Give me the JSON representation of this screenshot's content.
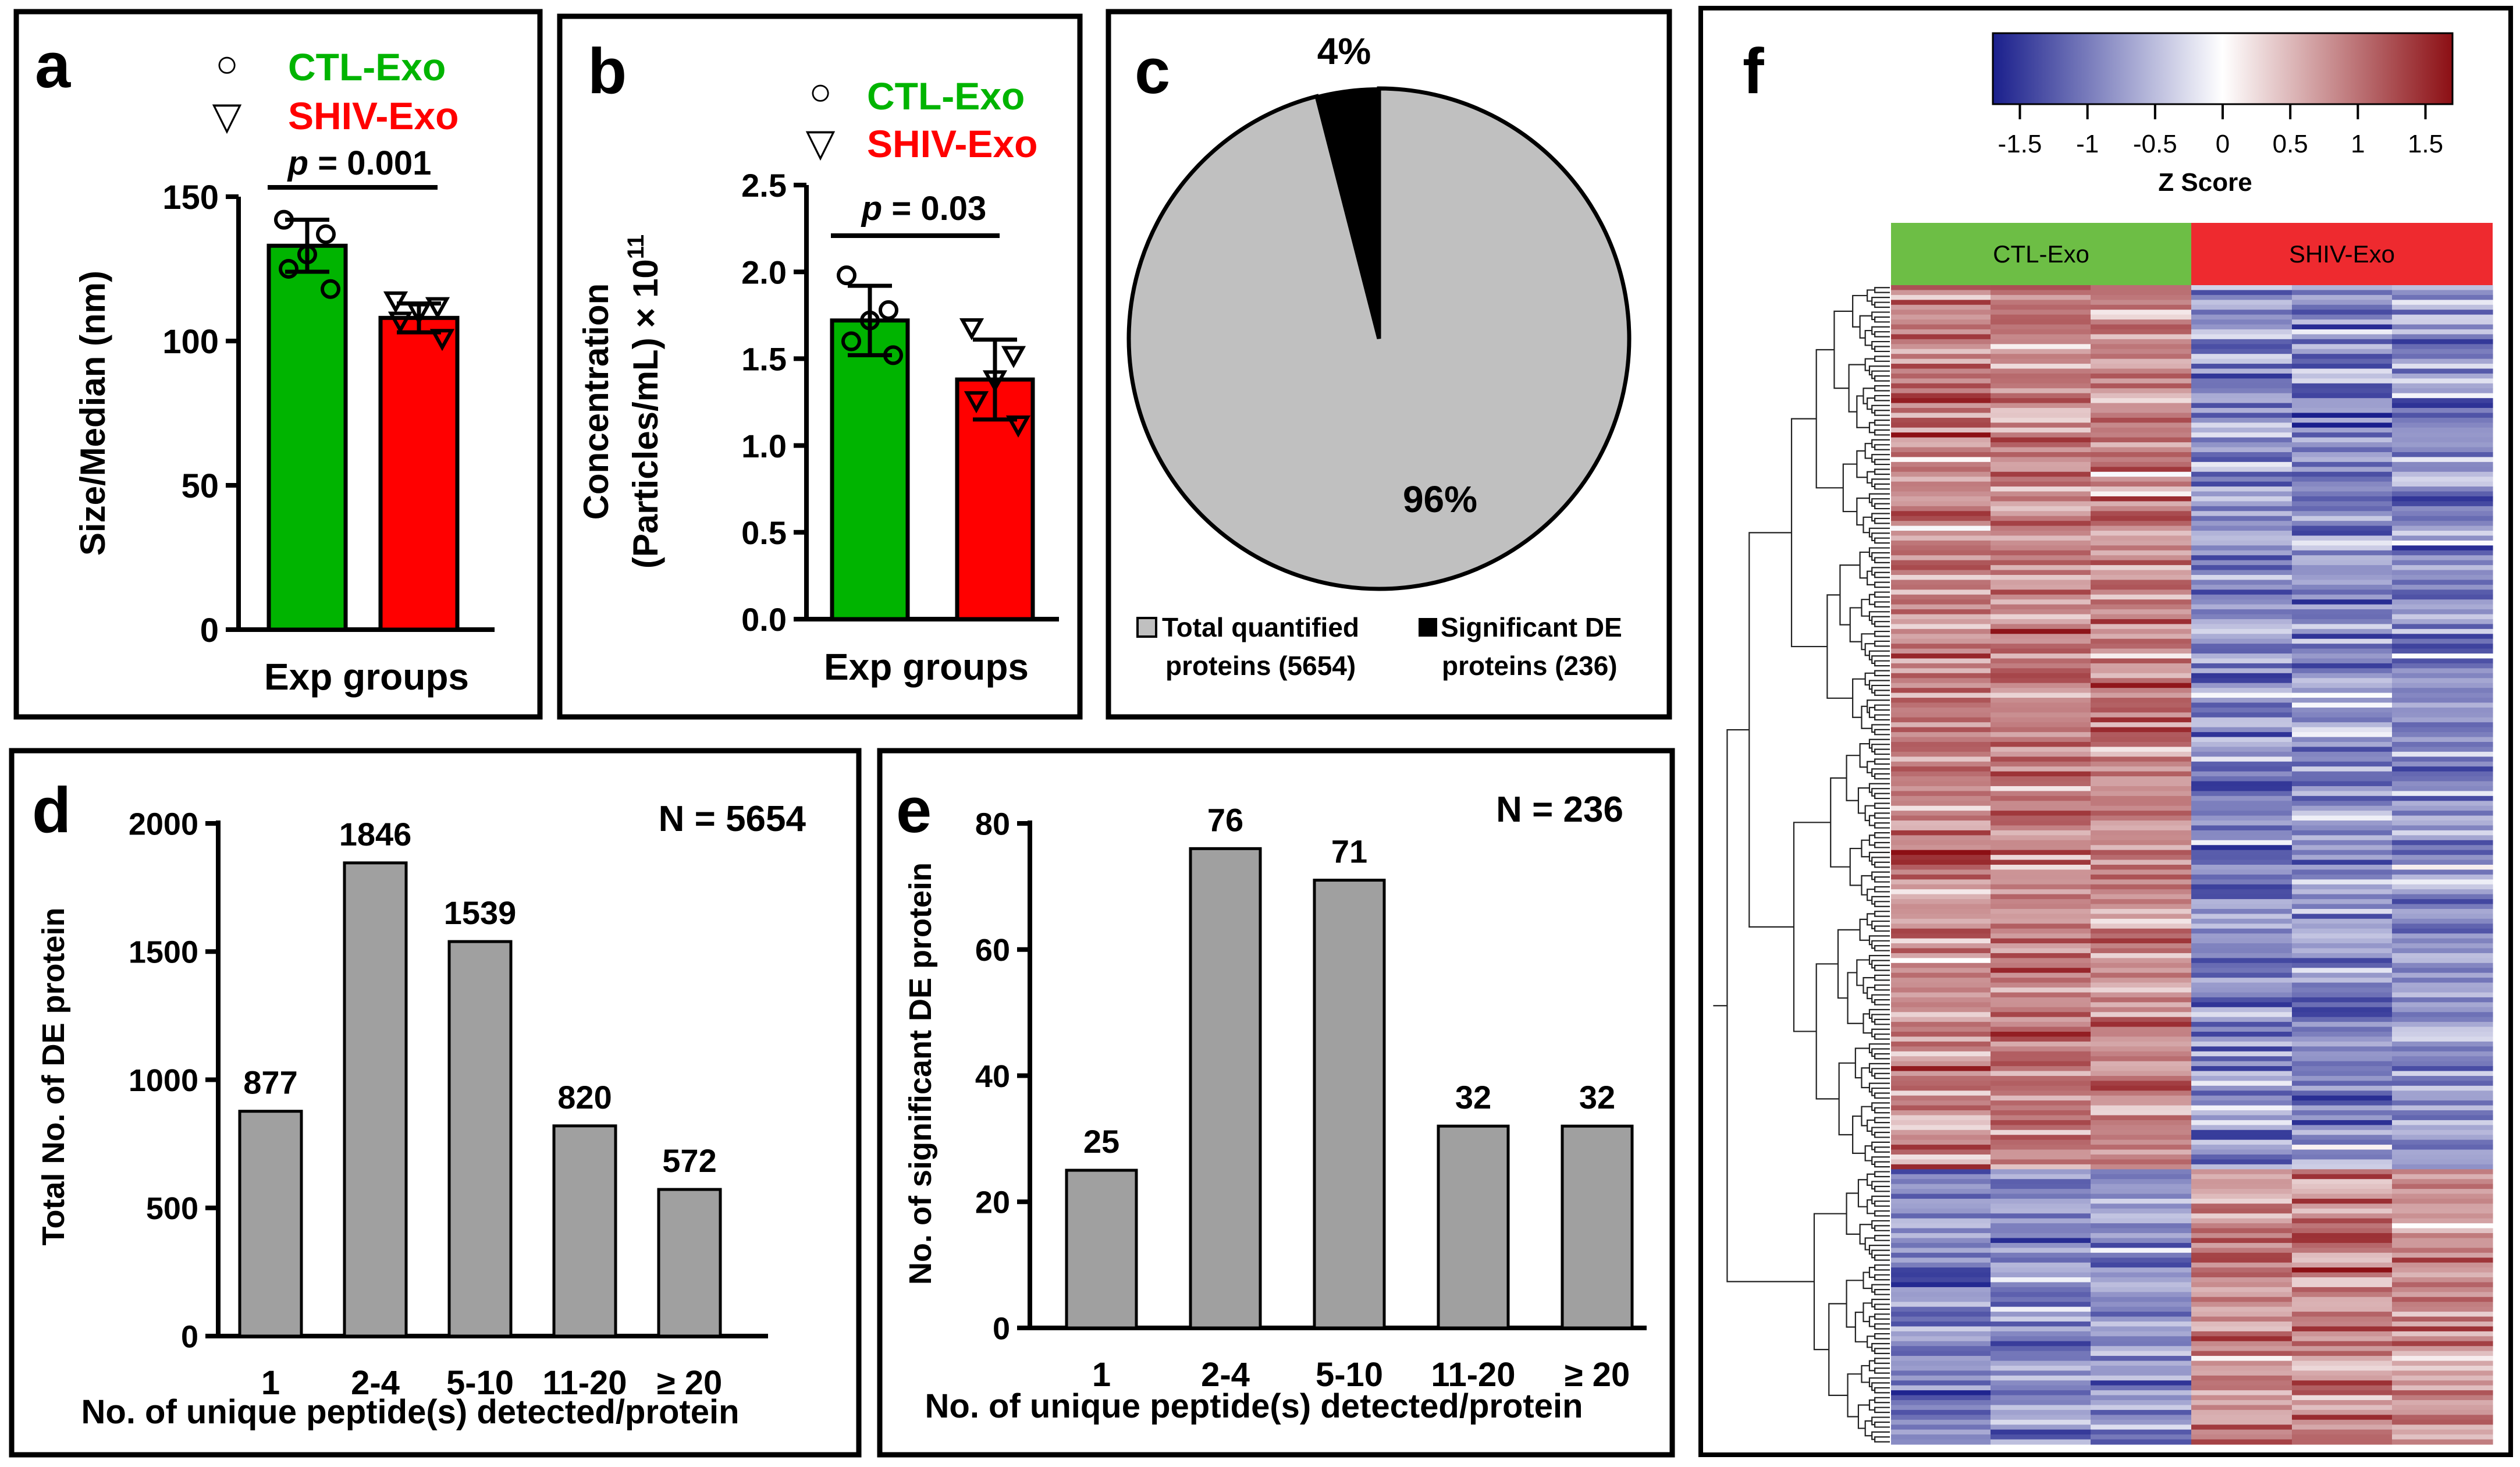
{
  "chart_data": [
    {
      "panel": "a",
      "type": "bar",
      "categories": [
        "CTL-Exo",
        "SHIV-Exo"
      ],
      "values": [
        133,
        108
      ],
      "errors": [
        9,
        5
      ],
      "points": [
        [
          142,
          137,
          130,
          125,
          118
        ],
        [
          114,
          112,
          110,
          107,
          101
        ]
      ],
      "colors": [
        "#00b400",
        "#ff0000"
      ],
      "legend": [
        "CTL-Exo",
        "SHIV-Exo"
      ],
      "legend_markers": [
        "○",
        "▽"
      ],
      "pvalue_prefix": "p",
      "pvalue_suffix": " = 0.001",
      "ylabel": "Size/Median (nm)",
      "xlabel": "Exp groups",
      "ylim": [
        0,
        150
      ],
      "yticks": [
        0,
        50,
        100,
        150
      ],
      "ytick_labels": [
        "0",
        "50",
        "100",
        "150"
      ]
    },
    {
      "panel": "b",
      "type": "bar",
      "categories": [
        "CTL-Exo",
        "SHIV-Exo"
      ],
      "values": [
        1.72,
        1.38
      ],
      "errors": [
        0.2,
        0.23
      ],
      "points": [
        [
          1.98,
          1.78,
          1.72,
          1.6,
          1.52
        ],
        [
          1.68,
          1.52,
          1.38,
          1.26,
          1.12
        ]
      ],
      "colors": [
        "#00b400",
        "#ff0000"
      ],
      "legend": [
        "CTL-Exo",
        "SHIV-Exo"
      ],
      "legend_markers": [
        "○",
        "▽"
      ],
      "pvalue_prefix": "p",
      "pvalue_suffix": " = 0.03",
      "ylabel_line1": "Concentration",
      "ylabel_line2": "(Particles/mL) × 10",
      "ylabel_sup": "11",
      "xlabel": "Exp groups",
      "ylim": [
        0,
        2.5
      ],
      "yticks": [
        0,
        0.5,
        1,
        1.5,
        2,
        2.5
      ],
      "ytick_labels": [
        "0.0",
        "0.5",
        "1.0",
        "1.5",
        "2.0",
        "2.5"
      ]
    },
    {
      "panel": "c",
      "type": "pie",
      "slices": [
        {
          "label_line1": "Total quantified",
          "label_line2": "proteins (5654)",
          "value": 96,
          "pct_label": "96%",
          "color": "#c0c0c0"
        },
        {
          "label_line1": "Significant DE",
          "label_line2": "proteins (236)",
          "value": 4,
          "pct_label": "4%",
          "color": "#000000"
        }
      ]
    },
    {
      "panel": "d",
      "type": "bar",
      "categories": [
        "1",
        "2-4",
        "5-10",
        "11-20",
        "≥ 20"
      ],
      "values": [
        877,
        1846,
        1539,
        820,
        572
      ],
      "value_labels": [
        "877",
        "1846",
        "1539",
        "820",
        "572"
      ],
      "n_label": "N = 5654",
      "ylabel": "Total No. of DE protein",
      "xlabel": "No. of unique peptide(s) detected/protein",
      "ylim": [
        0,
        2000
      ],
      "yticks": [
        0,
        500,
        1000,
        1500,
        2000
      ],
      "ytick_labels": [
        "0",
        "500",
        "1000",
        "1500",
        "2000"
      ],
      "bar_color": "#a0a0a0"
    },
    {
      "panel": "e",
      "type": "bar",
      "categories": [
        "1",
        "2-4",
        "5-10",
        "11-20",
        "≥ 20"
      ],
      "values": [
        25,
        76,
        71,
        32,
        32
      ],
      "value_labels": [
        "25",
        "76",
        "71",
        "32",
        "32"
      ],
      "n_label": "N = 236",
      "ylabel": "No. of significant DE protein",
      "xlabel": "No. of unique peptide(s) detected/protein",
      "ylim": [
        0,
        80
      ],
      "yticks": [
        0,
        20,
        40,
        60,
        80
      ],
      "ytick_labels": [
        "0",
        "20",
        "40",
        "60",
        "80"
      ],
      "bar_color": "#a0a0a0"
    },
    {
      "panel": "f",
      "type": "heatmap",
      "groups": [
        {
          "name": "CTL-Exo",
          "color": "#6dbe45"
        },
        {
          "name": "SHIV-Exo",
          "color": "#ee2a2f"
        }
      ],
      "colorbar_title": "Z Score",
      "colorbar_range": [
        -1.7,
        1.7
      ],
      "colorbar_ticks": [
        -1.5,
        -1,
        -0.5,
        0,
        0.5,
        1,
        1.5
      ],
      "colorbar_tick_labels": [
        "-1.5",
        "-1",
        "-0.5",
        "0",
        "0.5",
        "1",
        "1.5"
      ],
      "colorbar_colors": [
        "#1a1f8c",
        "#ffffff",
        "#8c0f14"
      ],
      "n_rows": 236,
      "n_columns": 6,
      "cluster_split_row": 180
    }
  ]
}
